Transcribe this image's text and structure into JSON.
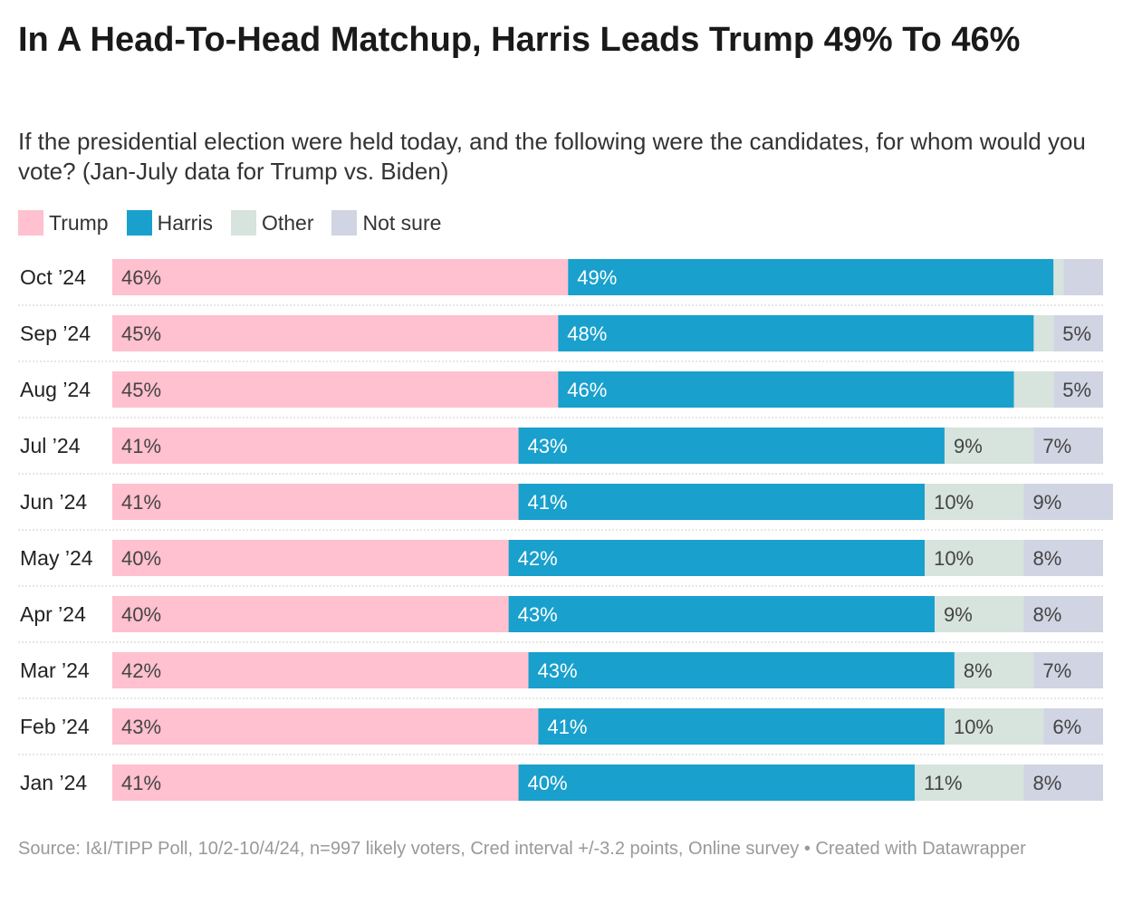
{
  "title": "In A Head-To-Head Matchup, Harris Leads Trump 49% To 46%",
  "subtitle": "If the presidential election were held today, and the following were the candidates, for whom would you vote? (Jan-July data for Trump vs. Biden)",
  "footer": "Source: I&I/TIPP Poll, 10/2-10/4/24, n=997 likely voters, Cred interval +/-3.2 points, Online survey • Created with Datawrapper",
  "chart_data": {
    "type": "bar",
    "orientation": "horizontal",
    "stacked": true,
    "title": "In A Head-To-Head Matchup, Harris Leads Trump 49% To 46%",
    "categories": [
      "Oct ’24",
      "Sep ’24",
      "Aug ’24",
      "Jul ’24",
      "Jun ’24",
      "May ’24",
      "Apr ’24",
      "Mar ’24",
      "Feb ’24",
      "Jan ’24"
    ],
    "series": [
      {
        "name": "Trump",
        "color": "#ffc0cf",
        "values": [
          46,
          45,
          45,
          41,
          41,
          40,
          40,
          42,
          43,
          41
        ],
        "labels": [
          "46%",
          "45%",
          "45%",
          "41%",
          "41%",
          "40%",
          "40%",
          "42%",
          "43%",
          "41%"
        ]
      },
      {
        "name": "Harris",
        "color": "#19a0cd",
        "values": [
          49,
          48,
          46,
          43,
          41,
          42,
          43,
          43,
          41,
          40
        ],
        "labels": [
          "49%",
          "48%",
          "46%",
          "43%",
          "41%",
          "42%",
          "43%",
          "43%",
          "41%",
          "40%"
        ]
      },
      {
        "name": "Other",
        "color": "#d7e3dd",
        "values": [
          1,
          2,
          4,
          9,
          10,
          10,
          9,
          8,
          10,
          11
        ],
        "labels": [
          "",
          "",
          "",
          "9%",
          "10%",
          "10%",
          "9%",
          "8%",
          "10%",
          "11%"
        ]
      },
      {
        "name": "Not sure",
        "color": "#d1d4e2",
        "values": [
          4,
          5,
          5,
          7,
          9,
          8,
          8,
          7,
          6,
          8
        ],
        "labels": [
          "",
          "5%",
          "5%",
          "7%",
          "9%",
          "8%",
          "8%",
          "7%",
          "6%",
          "8%"
        ]
      }
    ],
    "xlim": [
      0,
      100
    ],
    "legend": "top-left"
  }
}
